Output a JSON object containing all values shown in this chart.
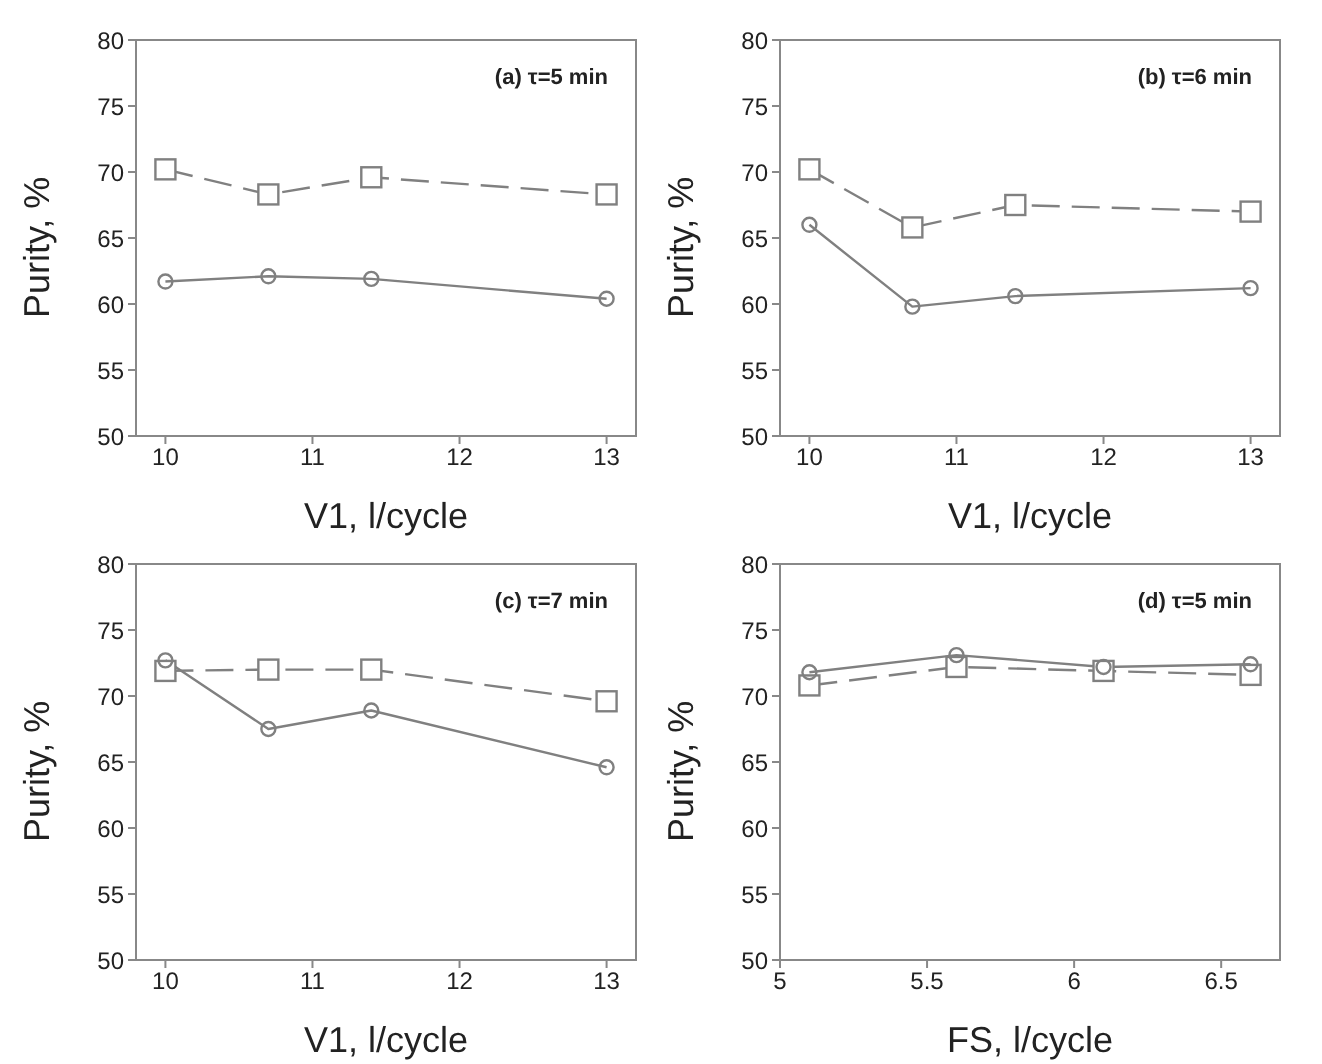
{
  "chart_data": [
    {
      "type": "line",
      "xlabel": "V1, l/cycle",
      "ylabel": "Purity, %",
      "annotations": [
        "(a) τ=5 min"
      ],
      "xlim": [
        9.8,
        13.2
      ],
      "xticks": [
        10,
        11,
        12,
        13
      ],
      "ylim": [
        50,
        80
      ],
      "yticks": [
        50,
        55,
        60,
        65,
        70,
        75,
        80
      ],
      "x": [
        10,
        10.7,
        11.4,
        13
      ],
      "grid": false,
      "legend": false,
      "series": [
        {
          "color": "#808080",
          "marker": "square",
          "line_style": "dashed",
          "values": [
            70.2,
            68.3,
            69.6,
            68.3
          ]
        },
        {
          "color": "#808080",
          "marker": "circle",
          "line_style": "solid",
          "values": [
            61.7,
            62.1,
            61.9,
            60.4
          ]
        }
      ]
    },
    {
      "type": "line",
      "xlabel": "V1, l/cycle",
      "ylabel": "Purity, %",
      "annotations": [
        "(b) τ=6 min"
      ],
      "xlim": [
        9.8,
        13.2
      ],
      "xticks": [
        10,
        11,
        12,
        13
      ],
      "ylim": [
        50,
        80
      ],
      "yticks": [
        50,
        55,
        60,
        65,
        70,
        75,
        80
      ],
      "x": [
        10,
        10.7,
        11.4,
        13
      ],
      "grid": false,
      "legend": false,
      "series": [
        {
          "color": "#808080",
          "marker": "square",
          "line_style": "dashed",
          "values": [
            70.2,
            65.8,
            67.5,
            67.0
          ]
        },
        {
          "color": "#808080",
          "marker": "circle",
          "line_style": "solid",
          "values": [
            66.0,
            59.8,
            60.6,
            61.2
          ]
        }
      ]
    },
    {
      "type": "line",
      "xlabel": "V1, l/cycle",
      "ylabel": "Purity, %",
      "annotations": [
        "(c) τ=7 min"
      ],
      "xlim": [
        9.8,
        13.2
      ],
      "xticks": [
        10,
        11,
        12,
        13
      ],
      "ylim": [
        50,
        80
      ],
      "yticks": [
        50,
        55,
        60,
        65,
        70,
        75,
        80
      ],
      "x": [
        10,
        10.7,
        11.4,
        13
      ],
      "grid": false,
      "legend": false,
      "series": [
        {
          "color": "#808080",
          "marker": "square",
          "line_style": "dashed",
          "values": [
            71.9,
            72.0,
            72.0,
            69.6
          ]
        },
        {
          "color": "#808080",
          "marker": "circle",
          "line_style": "solid",
          "values": [
            72.7,
            67.5,
            68.9,
            64.6
          ]
        }
      ]
    },
    {
      "type": "line",
      "xlabel": "FS, l/cycle",
      "ylabel": "Purity, %",
      "annotations": [
        "(d) τ=5 min"
      ],
      "xlim": [
        5,
        6.7
      ],
      "xticks": [
        5,
        5.5,
        6,
        6.5
      ],
      "ylim": [
        50,
        80
      ],
      "yticks": [
        50,
        55,
        60,
        65,
        70,
        75,
        80
      ],
      "x": [
        5.1,
        5.6,
        6.1,
        6.6
      ],
      "grid": false,
      "legend": false,
      "series": [
        {
          "color": "#808080",
          "marker": "square",
          "line_style": "dashed",
          "values": [
            70.8,
            72.2,
            71.9,
            71.6
          ]
        },
        {
          "color": "#808080",
          "marker": "circle",
          "line_style": "solid",
          "values": [
            71.8,
            73.1,
            72.2,
            72.4
          ]
        }
      ]
    }
  ]
}
